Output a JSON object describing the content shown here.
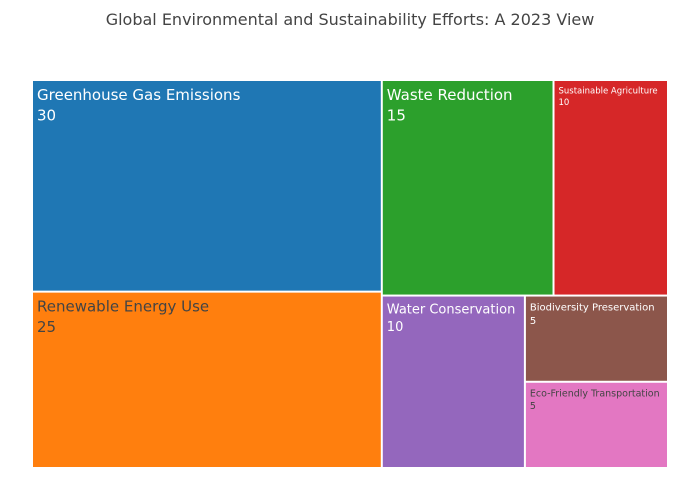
{
  "chart_data": {
    "type": "treemap",
    "title": "Global Environmental and Sustainability Efforts: A 2023 View",
    "items": [
      {
        "label": "Greenhouse Gas Emissions",
        "value": 30,
        "color": "#1f77b4",
        "text_color": "#ffffff"
      },
      {
        "label": "Renewable Energy Use",
        "value": 25,
        "color": "#ff7f0e",
        "text_color": "#444444"
      },
      {
        "label": "Waste Reduction",
        "value": 15,
        "color": "#2ca02c",
        "text_color": "#ffffff"
      },
      {
        "label": "Sustainable Agriculture",
        "value": 10,
        "color": "#d62728",
        "text_color": "#ffffff"
      },
      {
        "label": "Water Conservation",
        "value": 10,
        "color": "#9467bd",
        "text_color": "#ffffff"
      },
      {
        "label": "Biodiversity Preservation",
        "value": 5,
        "color": "#8c564b",
        "text_color": "#ffffff"
      },
      {
        "label": "Eco-Friendly Transportation",
        "value": 5,
        "color": "#e377c2",
        "text_color": "#444444"
      }
    ]
  }
}
